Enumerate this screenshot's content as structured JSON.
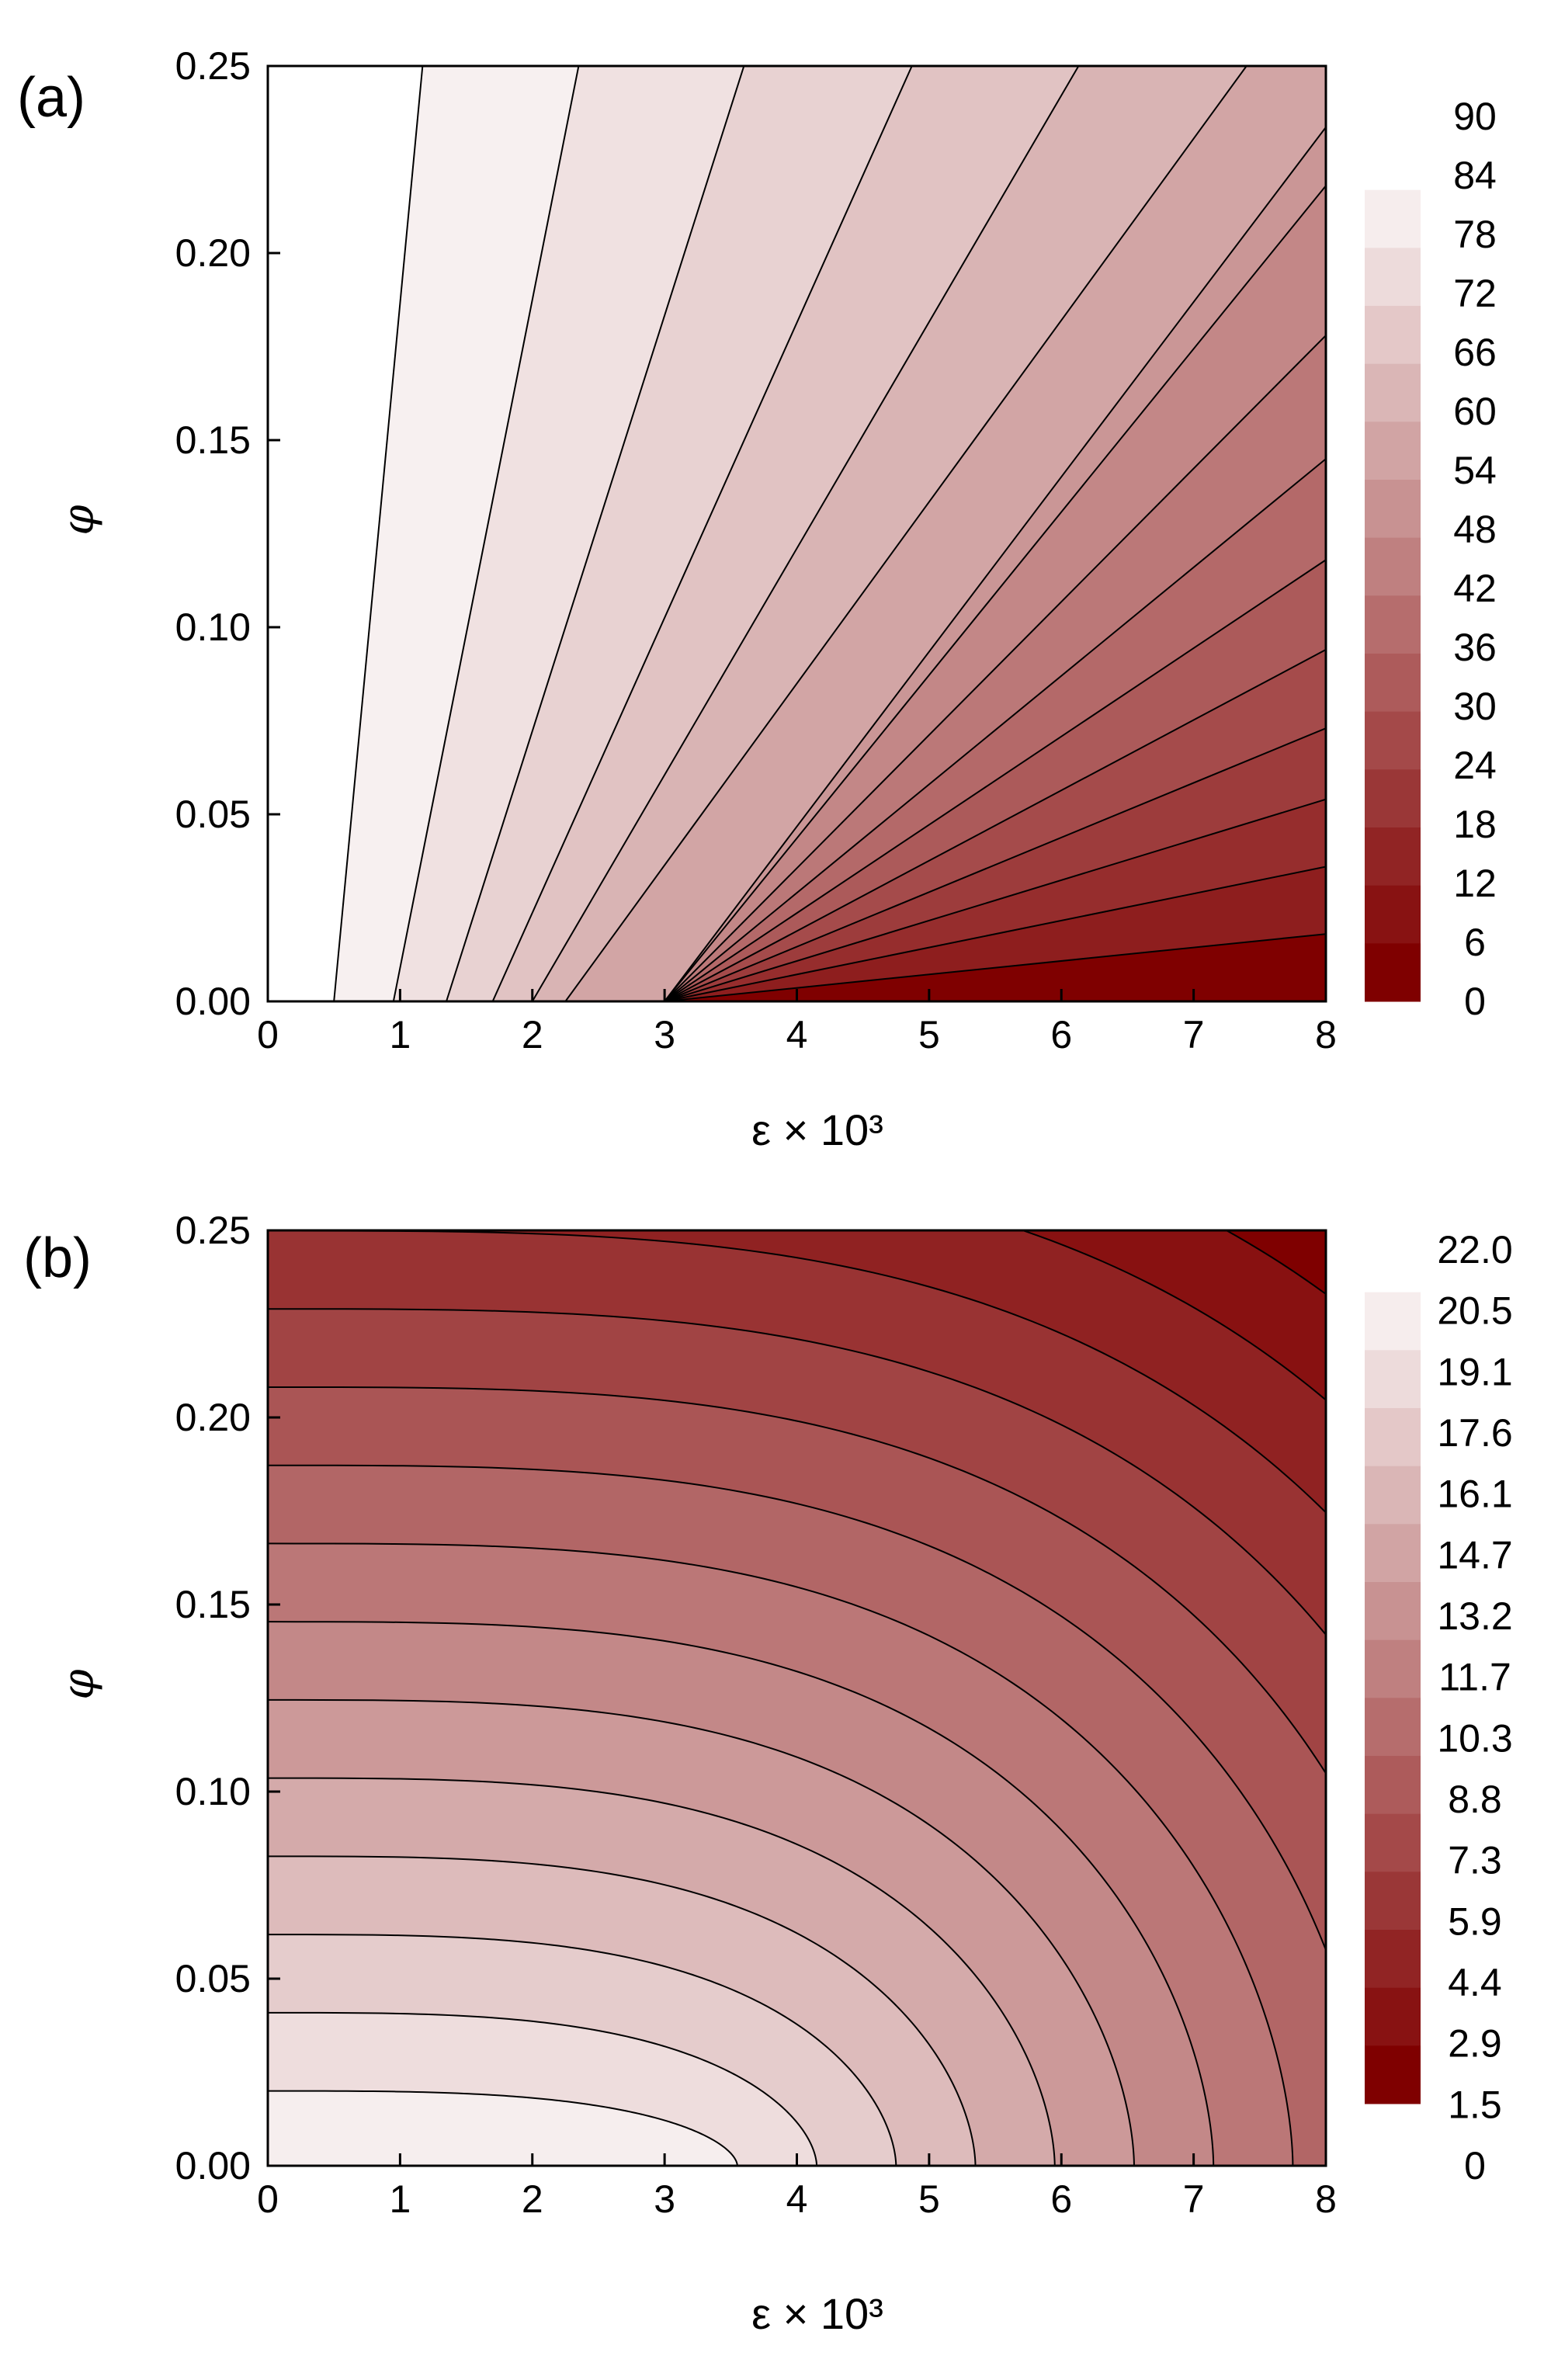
{
  "chart_data": [
    {
      "type": "contour",
      "panel_label": "(a)",
      "xlabel": "ε × 10³",
      "ylabel": "φ",
      "xlim": [
        0,
        8
      ],
      "ylim": [
        0,
        0.25
      ],
      "x_ticks": [
        "0",
        "1",
        "2",
        "3",
        "4",
        "5",
        "6",
        "7",
        "8"
      ],
      "y_ticks": [
        "0.00",
        "0.05",
        "0.10",
        "0.15",
        "0.20",
        "0.25"
      ],
      "contour_levels": [
        0,
        6,
        12,
        18,
        24,
        30,
        36,
        42,
        48,
        54,
        60,
        66,
        72,
        78,
        84,
        90
      ],
      "colorbar_labels": [
        "90",
        "84",
        "78",
        "72",
        "66",
        "60",
        "54",
        "48",
        "42",
        "36",
        "30",
        "24",
        "18",
        "12",
        "6",
        "0"
      ],
      "color_low": "#7f0000",
      "color_high": "#ffffff",
      "model": "fan of straight contour lines radiating from (ε×10³ ≈ 3, φ = 0); values decrease with ε and increase with φ",
      "contour_lines": [
        {
          "x_at_phi_0": 0.5,
          "x_at_phi_0_25": 1.17
        },
        {
          "x_at_phi_0": 0.95,
          "x_at_phi_0_25": 2.35
        },
        {
          "x_at_phi_0": 1.35,
          "x_at_phi_0_25": 3.6
        },
        {
          "x_at_phi_0": 1.7,
          "x_at_phi_0_25": 4.87
        },
        {
          "x_at_phi_0": 2.0,
          "x_at_phi_0_25": 6.13
        },
        {
          "x_at_phi_0": 2.25,
          "x_at_phi_0_25": 7.4
        }
      ]
    },
    {
      "type": "contour",
      "panel_label": "(b)",
      "xlabel": "ε × 10³",
      "ylabel": "φ",
      "xlim": [
        0,
        8
      ],
      "ylim": [
        0,
        0.25
      ],
      "x_ticks": [
        "0",
        "1",
        "2",
        "3",
        "4",
        "5",
        "6",
        "7",
        "8"
      ],
      "y_ticks": [
        "0.00",
        "0.05",
        "0.10",
        "0.15",
        "0.20",
        "0.25"
      ],
      "contour_levels": [
        0,
        1.5,
        2.9,
        4.4,
        5.9,
        7.3,
        8.8,
        10.3,
        11.7,
        13.2,
        14.7,
        16.1,
        17.6,
        19.1,
        20.5,
        22.0
      ],
      "colorbar_labels": [
        "22.0",
        "20.5",
        "19.1",
        "17.6",
        "16.1",
        "14.7",
        "13.2",
        "11.7",
        "10.3",
        "8.8",
        "7.3",
        "5.9",
        "4.4",
        "2.9",
        "1.5",
        "0"
      ],
      "color_low": "#ffffff",
      "color_high": "#7f0000",
      "model": "closed-form contours; value grows with both ε and φ",
      "contour_lines": [
        {
          "phi_at_eps_0": 0.02,
          "eps_at_phi_0": 3.55
        },
        {
          "phi_at_eps_0": 0.041,
          "eps_at_phi_0": 4.18
        },
        {
          "phi_at_eps_0": 0.062,
          "eps_at_phi_0": 4.78
        },
        {
          "phi_at_eps_0": 0.083,
          "eps_at_phi_0": 5.38
        },
        {
          "phi_at_eps_0": 0.104,
          "eps_at_phi_0": 5.95
        },
        {
          "phi_at_eps_0": 0.125,
          "eps_at_phi_0": 6.52
        },
        {
          "phi_at_eps_0": 0.146,
          "eps_at_phi_0": 7.08
        },
        {
          "phi_at_eps_0": 0.167,
          "eps_at_phi_0": 7.65
        }
      ]
    }
  ]
}
